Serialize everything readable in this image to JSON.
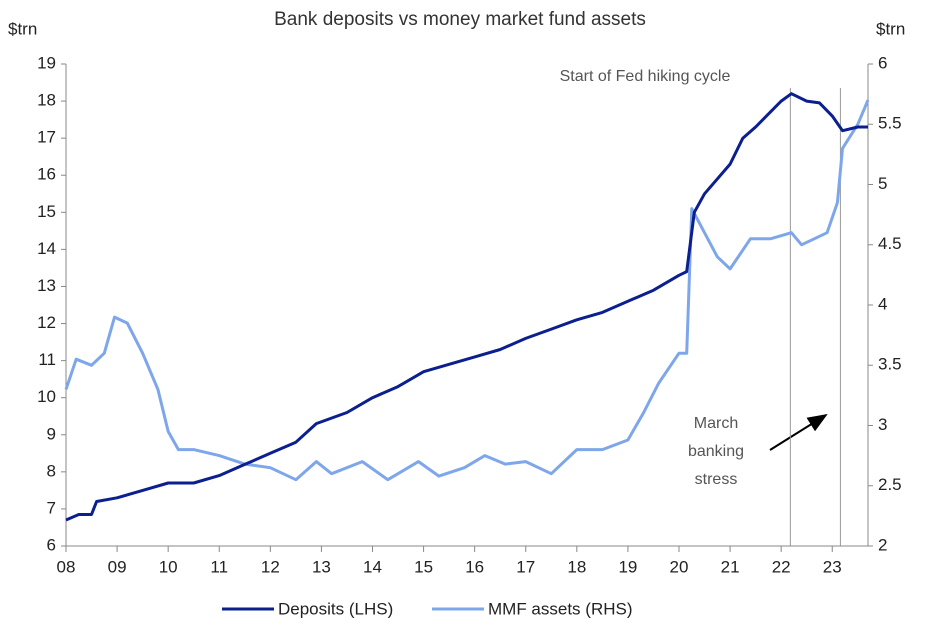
{
  "chart_data": {
    "type": "line",
    "title": "Bank deposits vs money market fund assets",
    "y_label": "$trn",
    "y2_label": "$trn",
    "annotations": [
      "Start of Fed hiking cycle",
      "March",
      "banking",
      "stress"
    ],
    "event_lines": [
      2022.18,
      2023.16
    ],
    "xlim": [
      2008,
      2023.7
    ],
    "xticks": [
      {
        "value": 2008,
        "label": "08"
      },
      {
        "value": 2009,
        "label": "09"
      },
      {
        "value": 2010,
        "label": "10"
      },
      {
        "value": 2011,
        "label": "11"
      },
      {
        "value": 2012,
        "label": "12"
      },
      {
        "value": 2013,
        "label": "13"
      },
      {
        "value": 2014,
        "label": "14"
      },
      {
        "value": 2015,
        "label": "15"
      },
      {
        "value": 2016,
        "label": "16"
      },
      {
        "value": 2017,
        "label": "17"
      },
      {
        "value": 2018,
        "label": "18"
      },
      {
        "value": 2019,
        "label": "19"
      },
      {
        "value": 2020,
        "label": "20"
      },
      {
        "value": 2021,
        "label": "21"
      },
      {
        "value": 2022,
        "label": "22"
      },
      {
        "value": 2023,
        "label": "23"
      }
    ],
    "ylim": [
      6,
      19
    ],
    "yticks": [
      6,
      7,
      8,
      9,
      10,
      11,
      12,
      13,
      14,
      15,
      16,
      17,
      18,
      19
    ],
    "y2lim": [
      2,
      6
    ],
    "y2ticks": [
      2,
      2.5,
      3,
      3.5,
      4,
      4.5,
      5,
      5.5,
      6
    ],
    "legend": "bottom",
    "series": [
      {
        "name": "Deposits (LHS)",
        "color": "#0b1f8f",
        "x": [
          2008.0,
          2008.25,
          2008.5,
          2008.6,
          2009.0,
          2009.5,
          2010.0,
          2010.5,
          2011.0,
          2011.5,
          2012.0,
          2012.5,
          2012.9,
          2013.5,
          2014.0,
          2014.5,
          2015.0,
          2015.5,
          2016.0,
          2016.5,
          2017.0,
          2017.5,
          2018.0,
          2018.5,
          2019.0,
          2019.5,
          2020.0,
          2020.15,
          2020.3,
          2020.5,
          2021.0,
          2021.25,
          2021.5,
          2022.0,
          2022.2,
          2022.5,
          2022.75,
          2023.0,
          2023.2,
          2023.5,
          2023.7
        ],
        "values": [
          6.7,
          6.85,
          6.85,
          7.2,
          7.3,
          7.5,
          7.7,
          7.7,
          7.9,
          8.2,
          8.5,
          8.8,
          9.3,
          9.6,
          10.0,
          10.3,
          10.7,
          10.9,
          11.1,
          11.3,
          11.6,
          11.85,
          12.1,
          12.3,
          12.6,
          12.9,
          13.3,
          13.4,
          15.0,
          15.5,
          16.3,
          17.0,
          17.3,
          18.0,
          18.2,
          18.0,
          17.95,
          17.6,
          17.2,
          17.3,
          17.3
        ]
      },
      {
        "name": "MMF assets (RHS)",
        "color": "#7ea6ea",
        "axis": "y2",
        "x": [
          2008.0,
          2008.2,
          2008.5,
          2008.75,
          2008.95,
          2009.2,
          2009.5,
          2009.8,
          2010.0,
          2010.2,
          2010.5,
          2011.0,
          2011.5,
          2012.0,
          2012.5,
          2012.9,
          2013.2,
          2013.8,
          2014.3,
          2014.9,
          2015.3,
          2015.8,
          2016.2,
          2016.6,
          2017.0,
          2017.5,
          2018.0,
          2018.5,
          2019.0,
          2019.3,
          2019.6,
          2020.0,
          2020.15,
          2020.25,
          2020.5,
          2020.75,
          2021.0,
          2021.4,
          2021.8,
          2022.2,
          2022.4,
          2022.9,
          2023.1,
          2023.2,
          2023.5,
          2023.7
        ],
        "values": [
          3.3,
          3.55,
          3.5,
          3.6,
          3.9,
          3.85,
          3.6,
          3.3,
          2.95,
          2.8,
          2.8,
          2.75,
          2.68,
          2.65,
          2.55,
          2.7,
          2.6,
          2.7,
          2.55,
          2.7,
          2.58,
          2.65,
          2.75,
          2.68,
          2.7,
          2.6,
          2.8,
          2.8,
          2.88,
          3.1,
          3.35,
          3.6,
          3.6,
          4.8,
          4.6,
          4.4,
          4.3,
          4.55,
          4.55,
          4.6,
          4.5,
          4.6,
          4.85,
          5.3,
          5.5,
          5.7
        ]
      }
    ]
  }
}
